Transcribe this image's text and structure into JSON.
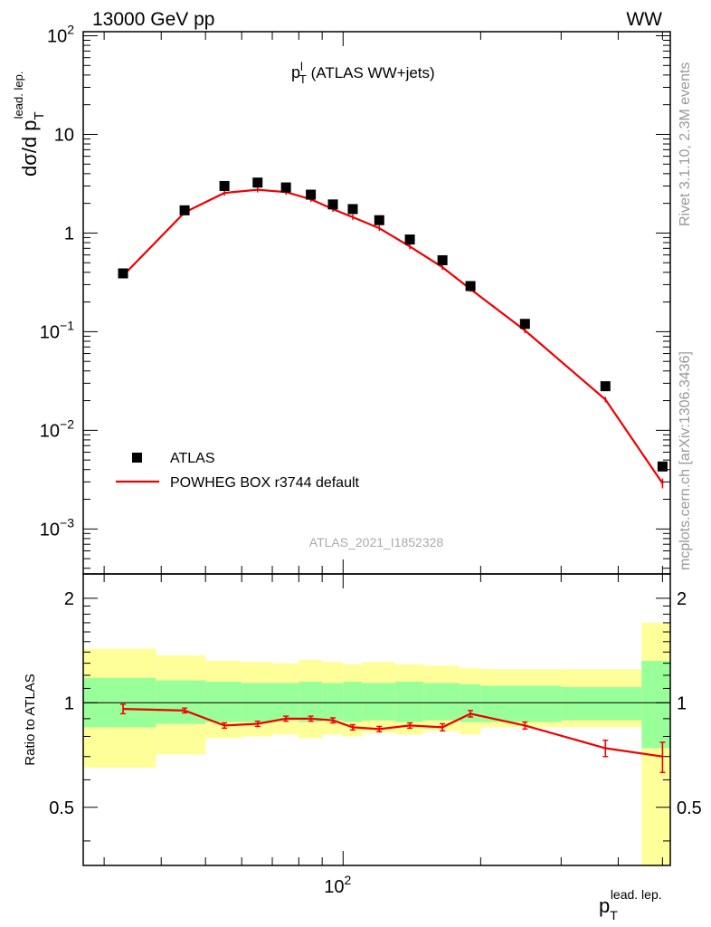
{
  "header": {
    "energy_label": "13000 GeV pp",
    "process_label": "WW"
  },
  "side_text": {
    "rivet": "Rivet 3.1.10,  2.3M events",
    "mcplots": "mcplots.cern.ch [arXiv:1306.3436]"
  },
  "analysis_id": "ATLAS_2021_I1852328",
  "colors": {
    "mc_line": "#ee0000",
    "band_inner": "#99ff99",
    "band_outer": "#ffff99",
    "data_marker": "#000000"
  },
  "chart_data": [
    {
      "type": "scatter",
      "panel": "main",
      "title": "p_T^l (ATLAS WW+jets)",
      "title_main": "p",
      "title_sub": "T",
      "title_sup": "l",
      "title_rest": " (ATLAS WW+jets)",
      "ylabel_main": "dσ/d p",
      "ylabel_sub": "T",
      "ylabel_sup": "lead. lep.",
      "xscale": "log",
      "yscale": "log",
      "xlim": [
        27,
        520
      ],
      "ylim": [
        0.00035,
        110
      ],
      "y_tick_labels": [
        {
          "value": 0.001,
          "base": "10",
          "exp": "−3"
        },
        {
          "value": 0.01,
          "base": "10",
          "exp": "−2"
        },
        {
          "value": 0.1,
          "base": "10",
          "exp": "−1"
        },
        {
          "value": 1,
          "base": "1",
          "exp": ""
        },
        {
          "value": 10,
          "base": "10",
          "exp": ""
        },
        {
          "value": 100,
          "base": "10",
          "exp": "2"
        }
      ],
      "legend_position": "lower-left",
      "series": [
        {
          "name": "ATLAS",
          "kind": "points",
          "x": [
            33,
            45,
            55,
            65,
            75,
            85,
            95,
            105,
            120,
            140,
            165,
            190,
            250,
            375,
            500
          ],
          "y": [
            0.39,
            1.7,
            3.0,
            3.25,
            2.9,
            2.45,
            1.95,
            1.75,
            1.35,
            0.86,
            0.53,
            0.29,
            0.12,
            0.028,
            0.0043
          ]
        },
        {
          "name": "POWHEG BOX r3744 default",
          "kind": "line",
          "x": [
            33,
            45,
            55,
            65,
            75,
            85,
            95,
            105,
            120,
            140,
            165,
            190,
            250,
            375,
            500
          ],
          "y": [
            0.37,
            1.62,
            2.55,
            2.75,
            2.6,
            2.2,
            1.75,
            1.45,
            1.12,
            0.73,
            0.45,
            0.27,
            0.103,
            0.0205,
            0.0029
          ]
        }
      ]
    },
    {
      "type": "line",
      "panel": "ratio",
      "ylabel": "Ratio to ATLAS",
      "xscale": "log",
      "xlim": [
        27,
        520
      ],
      "ylim": [
        0.34,
        2.35
      ],
      "y_tick_labels": [
        0.5,
        1,
        2
      ],
      "x_tick_labels": [
        {
          "value": 100,
          "base": "10",
          "exp": "2"
        }
      ],
      "xlabel_main": "p",
      "xlabel_sub": "T",
      "xlabel_sup": "lead. lep.",
      "bin_edges": [
        27,
        39,
        50,
        60,
        70,
        80,
        90,
        100,
        110,
        130,
        150,
        180,
        200,
        300,
        450,
        520
      ],
      "band_inner_low": [
        0.85,
        0.87,
        0.88,
        0.88,
        0.89,
        0.88,
        0.89,
        0.88,
        0.89,
        0.88,
        0.89,
        0.88,
        0.88,
        0.89,
        0.74
      ],
      "band_inner_high": [
        1.18,
        1.16,
        1.15,
        1.14,
        1.14,
        1.15,
        1.14,
        1.15,
        1.14,
        1.15,
        1.14,
        1.13,
        1.12,
        1.11,
        1.32
      ],
      "band_outer_low": [
        0.65,
        0.71,
        0.79,
        0.8,
        0.81,
        0.79,
        0.81,
        0.8,
        0.82,
        0.81,
        0.83,
        0.81,
        0.85,
        0.85,
        0.34
      ],
      "band_outer_high": [
        1.43,
        1.37,
        1.32,
        1.31,
        1.3,
        1.33,
        1.31,
        1.29,
        1.31,
        1.29,
        1.28,
        1.26,
        1.25,
        1.25,
        1.7
      ],
      "series": [
        {
          "name": "POWHEG BOX r3744 default",
          "x": [
            33,
            45,
            55,
            65,
            75,
            85,
            95,
            105,
            120,
            140,
            165,
            190,
            250,
            375,
            500
          ],
          "y": [
            0.96,
            0.95,
            0.86,
            0.87,
            0.9,
            0.9,
            0.89,
            0.85,
            0.84,
            0.86,
            0.85,
            0.93,
            0.86,
            0.74,
            0.7
          ],
          "err": [
            0.03,
            0.015,
            0.015,
            0.015,
            0.015,
            0.015,
            0.015,
            0.015,
            0.015,
            0.015,
            0.02,
            0.02,
            0.02,
            0.04,
            0.07
          ]
        }
      ]
    }
  ]
}
